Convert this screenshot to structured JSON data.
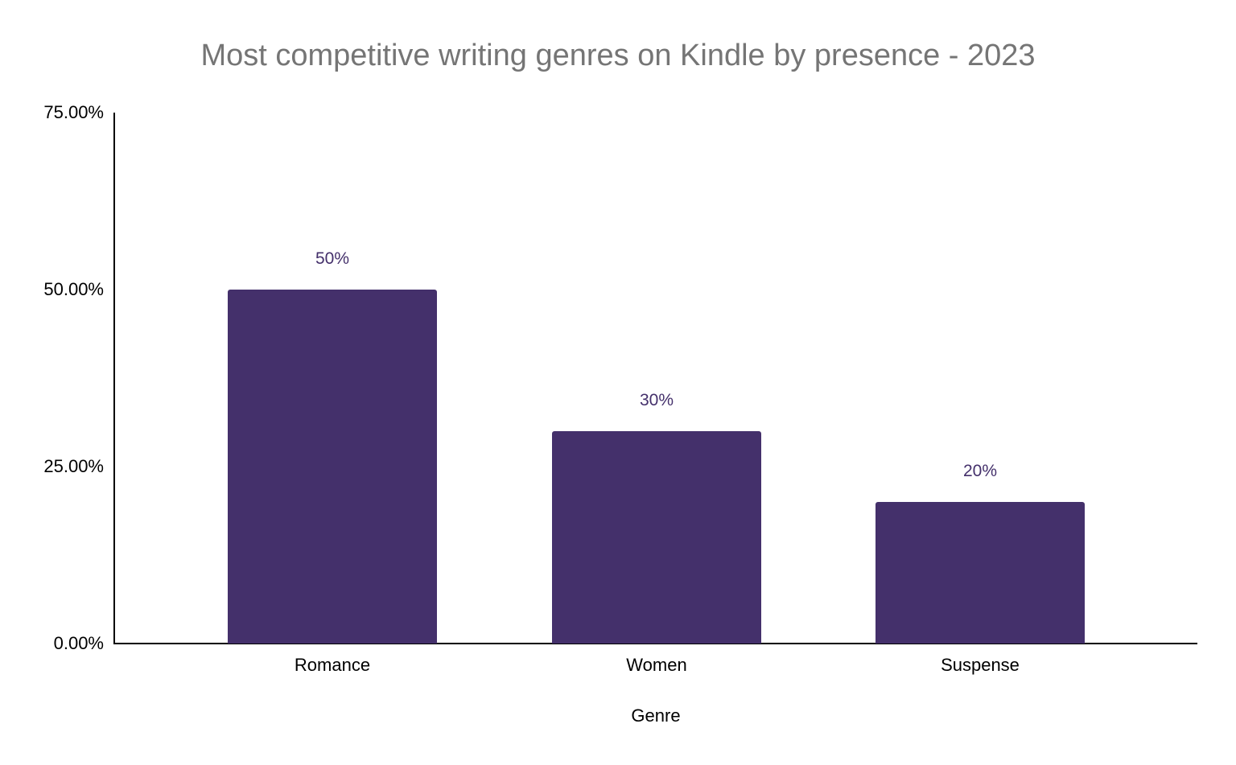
{
  "chart_data": {
    "type": "bar",
    "title": "Most competitive writing genres on Kindle by presence - 2023",
    "xlabel": "Genre",
    "ylabel": "",
    "categories": [
      "Romance",
      "Women",
      "Suspense"
    ],
    "values": [
      50,
      30,
      20
    ],
    "data_labels": [
      "50%",
      "30%",
      "20%"
    ],
    "ylim": [
      0,
      75
    ],
    "yticks": [
      0,
      25,
      50,
      75
    ],
    "ytick_labels": [
      "0.00%",
      "25.00%",
      "50.00%",
      "75.00%"
    ],
    "grid": false,
    "legend": "none",
    "bar_color": "#44306b"
  }
}
